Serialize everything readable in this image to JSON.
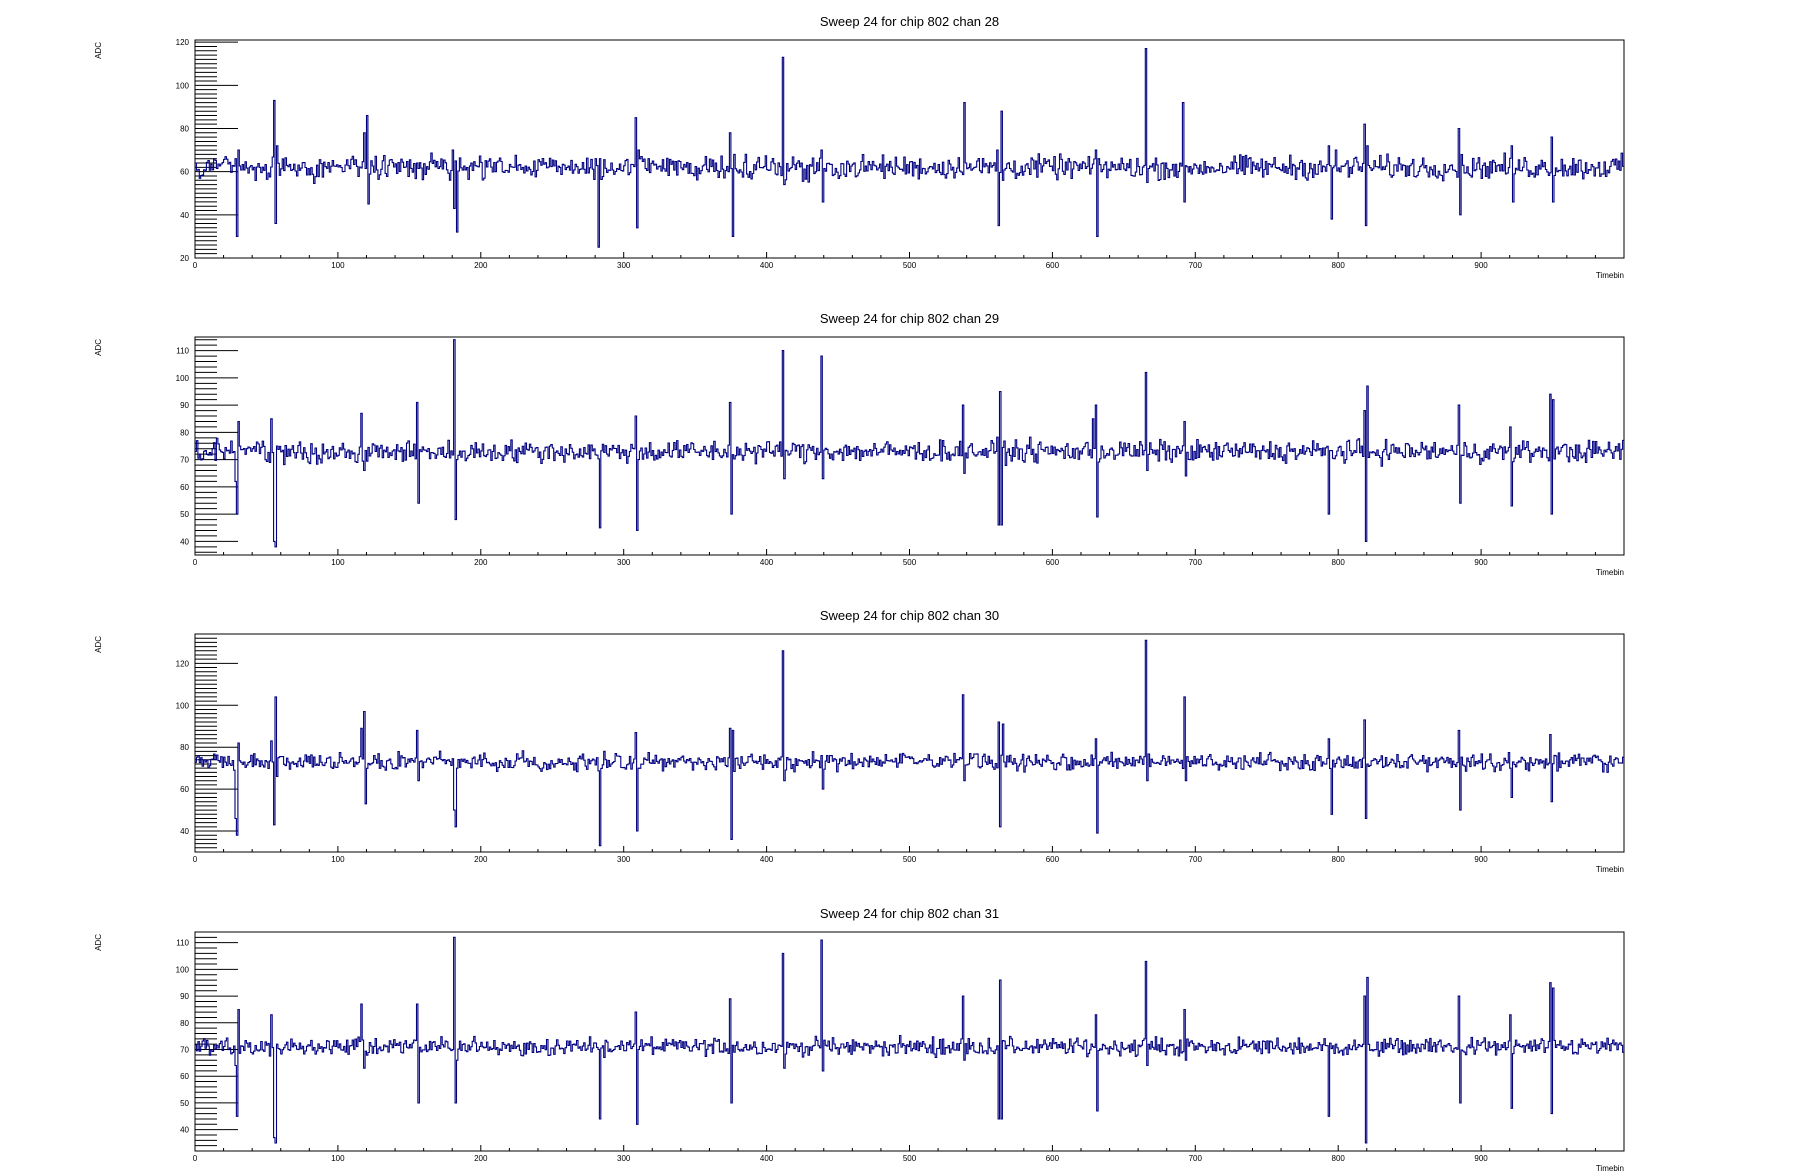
{
  "chart_data": [
    {
      "type": "line",
      "title": "Sweep 24 for chip 802 chan 28",
      "xlabel": "Timebin",
      "ylabel": "ADC",
      "xlim": [
        0,
        1000
      ],
      "ylim": [
        20,
        121
      ],
      "xticks": [
        0,
        100,
        200,
        300,
        400,
        500,
        600,
        700,
        800,
        900
      ],
      "yticks": [
        20,
        40,
        60,
        80,
        100,
        120
      ],
      "baseline": 62,
      "noise": 4,
      "series": [
        {
          "color": "#000080",
          "spikes": [
            [
              28,
              66
            ],
            [
              29,
              30
            ],
            [
              30,
              70
            ],
            [
              55,
              93
            ],
            [
              56,
              36
            ],
            [
              57,
              72
            ],
            [
              118,
              78
            ],
            [
              120,
              86
            ],
            [
              121,
              45
            ],
            [
              180,
              70
            ],
            [
              181,
              43
            ],
            [
              182,
              65
            ],
            [
              183,
              32
            ],
            [
              280,
              66
            ],
            [
              282,
              25
            ],
            [
              283,
              66
            ],
            [
              308,
              85
            ],
            [
              309,
              34
            ],
            [
              310,
              70
            ],
            [
              374,
              78
            ],
            [
              376,
              30
            ],
            [
              377,
              68
            ],
            [
              411,
              113
            ],
            [
              412,
              54
            ],
            [
              438,
              70
            ],
            [
              439,
              46
            ],
            [
              538,
              92
            ],
            [
              539,
              64
            ],
            [
              561,
              70
            ],
            [
              562,
              35
            ],
            [
              564,
              88
            ],
            [
              565,
              56
            ],
            [
              630,
              70
            ],
            [
              631,
              30
            ],
            [
              632,
              66
            ],
            [
              665,
              117
            ],
            [
              666,
              55
            ],
            [
              691,
              92
            ],
            [
              692,
              46
            ],
            [
              793,
              72
            ],
            [
              795,
              38
            ],
            [
              798,
              70
            ],
            [
              818,
              82
            ],
            [
              819,
              35
            ],
            [
              820,
              72
            ],
            [
              884,
              80
            ],
            [
              885,
              40
            ],
            [
              921,
              72
            ],
            [
              922,
              46
            ],
            [
              949,
              76
            ],
            [
              950,
              46
            ]
          ]
        }
      ]
    },
    {
      "type": "line",
      "title": "Sweep 24 for chip 802 chan 29",
      "xlabel": "Timebin",
      "ylabel": "ADC",
      "xlim": [
        0,
        1000
      ],
      "ylim": [
        35,
        115
      ],
      "xticks": [
        0,
        100,
        200,
        300,
        400,
        500,
        600,
        700,
        800,
        900
      ],
      "yticks": [
        40,
        50,
        60,
        70,
        80,
        90,
        100,
        110
      ],
      "baseline": 73,
      "noise": 3,
      "series": [
        {
          "color": "#000080",
          "spikes": [
            [
              28,
              62
            ],
            [
              29,
              50
            ],
            [
              30,
              84
            ],
            [
              53,
              85
            ],
            [
              55,
              40
            ],
            [
              56,
              38
            ],
            [
              57,
              75
            ],
            [
              116,
              87
            ],
            [
              118,
              66
            ],
            [
              155,
              91
            ],
            [
              156,
              54
            ],
            [
              181,
              114
            ],
            [
              182,
              48
            ],
            [
              183,
              70
            ],
            [
              283,
              45
            ],
            [
              308,
              86
            ],
            [
              309,
              44
            ],
            [
              310,
              70
            ],
            [
              374,
              91
            ],
            [
              375,
              50
            ],
            [
              411,
              110
            ],
            [
              412,
              63
            ],
            [
              438,
              108
            ],
            [
              439,
              63
            ],
            [
              537,
              90
            ],
            [
              538,
              65
            ],
            [
              562,
              46
            ],
            [
              563,
              95
            ],
            [
              564,
              46
            ],
            [
              628,
              85
            ],
            [
              630,
              90
            ],
            [
              631,
              49
            ],
            [
              665,
              102
            ],
            [
              666,
              66
            ],
            [
              692,
              84
            ],
            [
              693,
              64
            ],
            [
              793,
              50
            ],
            [
              818,
              88
            ],
            [
              819,
              40
            ],
            [
              820,
              97
            ],
            [
              884,
              90
            ],
            [
              885,
              54
            ],
            [
              920,
              82
            ],
            [
              921,
              53
            ],
            [
              948,
              94
            ],
            [
              949,
              50
            ],
            [
              950,
              92
            ]
          ]
        }
      ]
    },
    {
      "type": "line",
      "title": "Sweep 24 for chip 802 chan 30",
      "xlabel": "Timebin",
      "ylabel": "ADC",
      "xlim": [
        0,
        1000
      ],
      "ylim": [
        30,
        134
      ],
      "xticks": [
        0,
        100,
        200,
        300,
        400,
        500,
        600,
        700,
        800,
        900
      ],
      "yticks": [
        40,
        60,
        80,
        100,
        120
      ],
      "baseline": 73,
      "noise": 3,
      "series": [
        {
          "color": "#000080",
          "spikes": [
            [
              28,
              46
            ],
            [
              29,
              38
            ],
            [
              30,
              82
            ],
            [
              53,
              83
            ],
            [
              55,
              43
            ],
            [
              56,
              104
            ],
            [
              57,
              66
            ],
            [
              116,
              89
            ],
            [
              118,
              97
            ],
            [
              119,
              53
            ],
            [
              155,
              88
            ],
            [
              156,
              64
            ],
            [
              181,
              50
            ],
            [
              182,
              42
            ],
            [
              183,
              70
            ],
            [
              283,
              33
            ],
            [
              308,
              87
            ],
            [
              309,
              40
            ],
            [
              310,
              70
            ],
            [
              374,
              89
            ],
            [
              375,
              36
            ],
            [
              376,
              88
            ],
            [
              411,
              126
            ],
            [
              412,
              64
            ],
            [
              438,
              76
            ],
            [
              439,
              60
            ],
            [
              537,
              105
            ],
            [
              538,
              64
            ],
            [
              562,
              92
            ],
            [
              563,
              42
            ],
            [
              565,
              91
            ],
            [
              630,
              84
            ],
            [
              631,
              39
            ],
            [
              665,
              131
            ],
            [
              666,
              64
            ],
            [
              692,
              104
            ],
            [
              693,
              64
            ],
            [
              793,
              84
            ],
            [
              795,
              48
            ],
            [
              818,
              93
            ],
            [
              819,
              46
            ],
            [
              884,
              88
            ],
            [
              885,
              50
            ],
            [
              920,
              70
            ],
            [
              921,
              56
            ],
            [
              948,
              86
            ],
            [
              949,
              54
            ]
          ]
        }
      ]
    },
    {
      "type": "line",
      "title": "Sweep 24 for chip 802 chan 31",
      "xlabel": "Timebin",
      "ylabel": "ADC",
      "xlim": [
        0,
        1000
      ],
      "ylim": [
        32,
        114
      ],
      "xticks": [
        0,
        100,
        200,
        300,
        400,
        500,
        600,
        700,
        800,
        900
      ],
      "yticks": [
        40,
        50,
        60,
        70,
        80,
        90,
        100,
        110
      ],
      "baseline": 71,
      "noise": 2.5,
      "series": [
        {
          "color": "#000080",
          "spikes": [
            [
              28,
              64
            ],
            [
              29,
              45
            ],
            [
              30,
              85
            ],
            [
              53,
              83
            ],
            [
              55,
              37
            ],
            [
              56,
              35
            ],
            [
              57,
              72
            ],
            [
              116,
              87
            ],
            [
              118,
              63
            ],
            [
              155,
              87
            ],
            [
              156,
              50
            ],
            [
              181,
              112
            ],
            [
              182,
              50
            ],
            [
              183,
              66
            ],
            [
              283,
              44
            ],
            [
              308,
              84
            ],
            [
              309,
              42
            ],
            [
              310,
              70
            ],
            [
              374,
              89
            ],
            [
              375,
              50
            ],
            [
              411,
              106
            ],
            [
              412,
              63
            ],
            [
              438,
              111
            ],
            [
              439,
              62
            ],
            [
              537,
              90
            ],
            [
              538,
              66
            ],
            [
              562,
              44
            ],
            [
              563,
              96
            ],
            [
              564,
              44
            ],
            [
              630,
              83
            ],
            [
              631,
              47
            ],
            [
              665,
              103
            ],
            [
              666,
              64
            ],
            [
              692,
              85
            ],
            [
              693,
              66
            ],
            [
              793,
              45
            ],
            [
              818,
              90
            ],
            [
              819,
              35
            ],
            [
              820,
              97
            ],
            [
              884,
              90
            ],
            [
              885,
              50
            ],
            [
              920,
              83
            ],
            [
              921,
              48
            ],
            [
              948,
              95
            ],
            [
              949,
              46
            ],
            [
              950,
              93
            ]
          ]
        }
      ]
    }
  ]
}
